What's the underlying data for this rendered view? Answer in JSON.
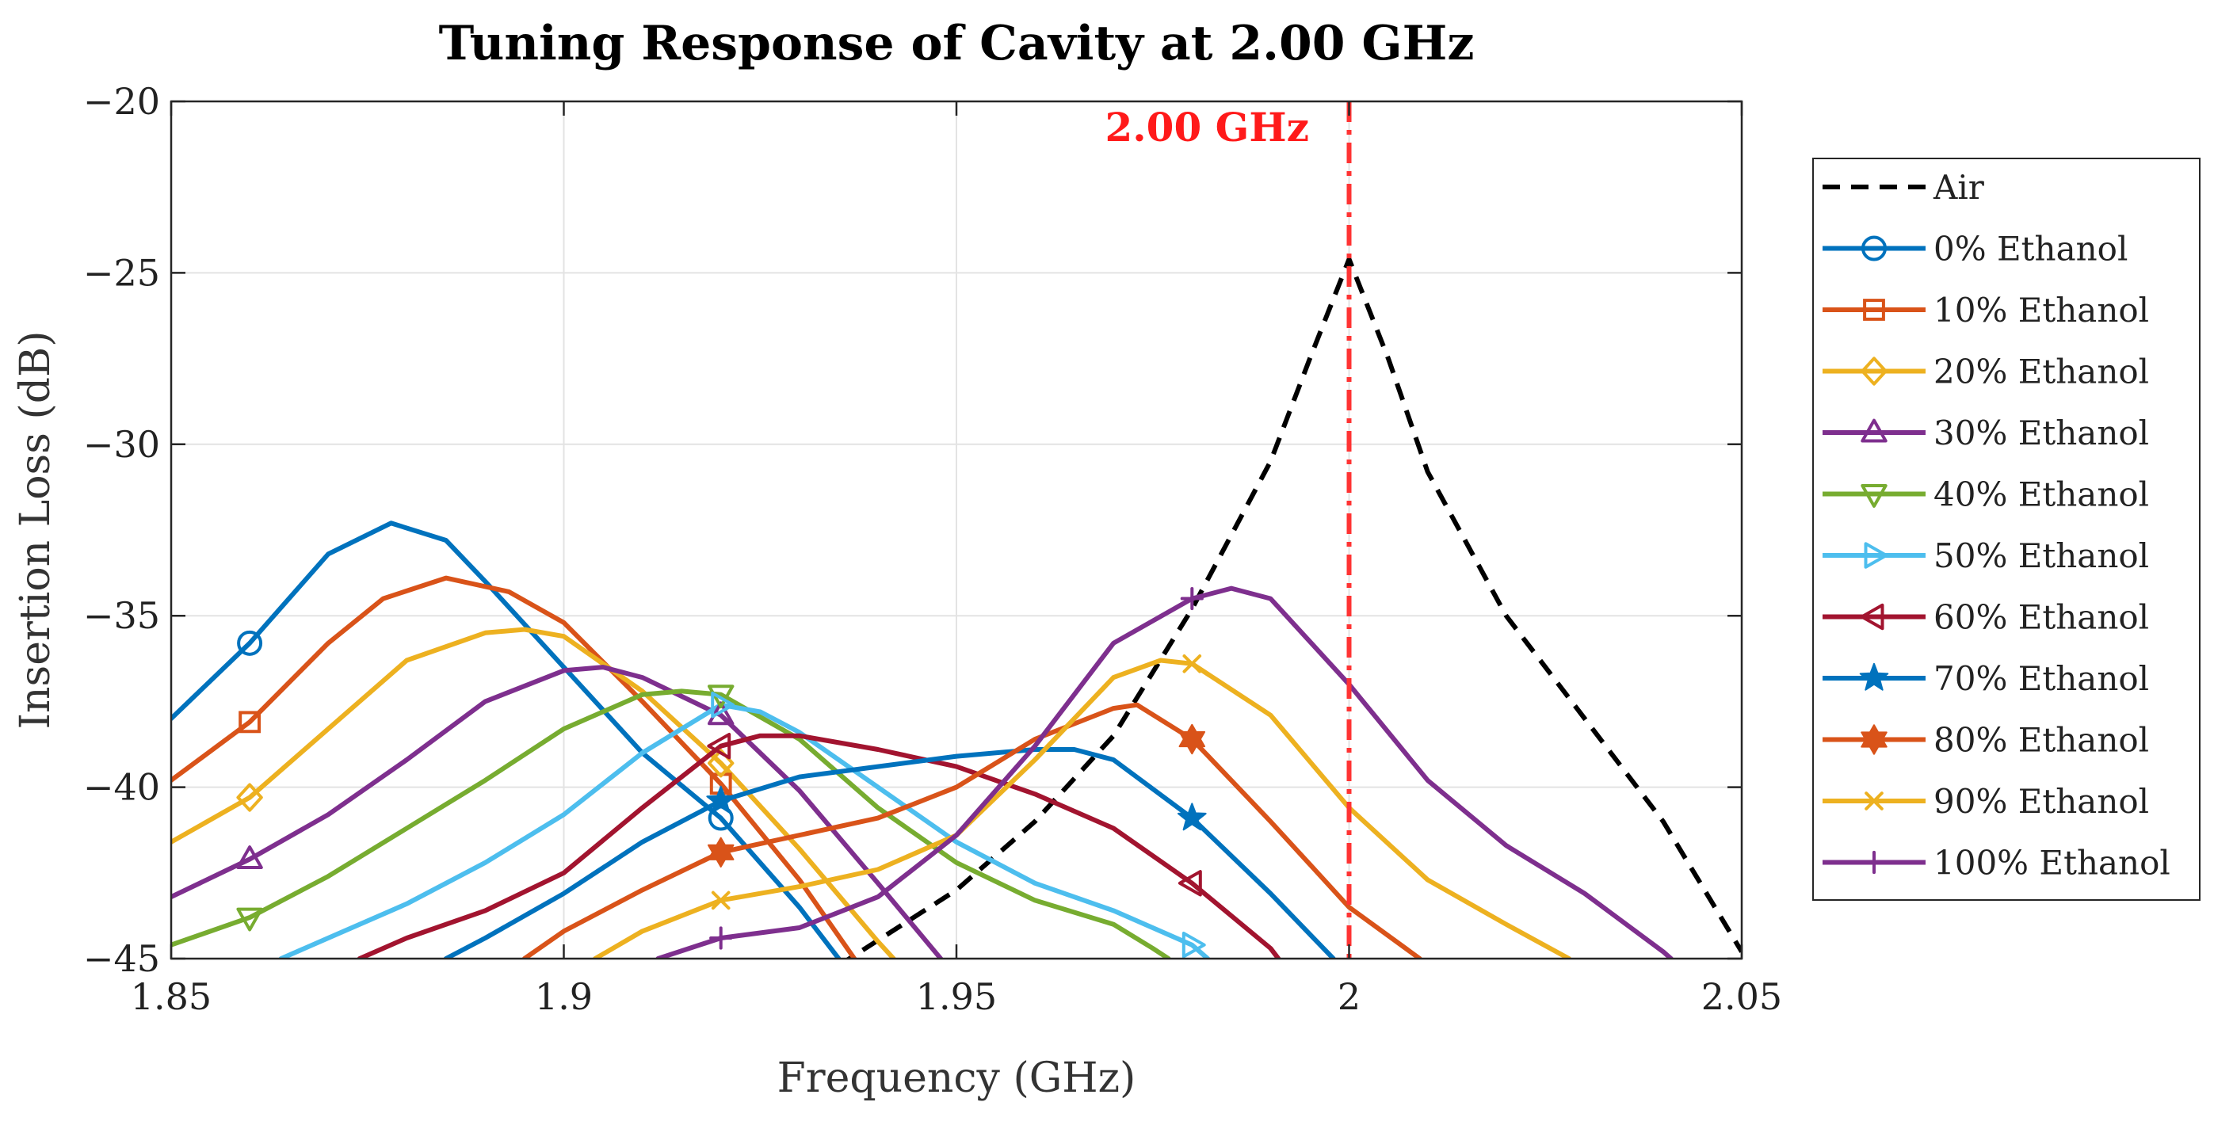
{
  "chart_data": {
    "type": "line",
    "title": "Tuning Response of Cavity at 2.00 GHz",
    "xlabel": "Frequency (GHz)",
    "ylabel": "Insertion Loss (dB)",
    "xlim": [
      1.85,
      2.05
    ],
    "ylim": [
      -45,
      -20
    ],
    "xticks": [
      1.85,
      1.9,
      1.95,
      2,
      2.05
    ],
    "xtick_labels": [
      "1.85",
      "1.9",
      "1.95",
      "2",
      "2.05"
    ],
    "yticks": [
      -45,
      -40,
      -35,
      -30,
      -25,
      -20
    ],
    "ytick_labels": [
      "−45",
      "−40",
      "−35",
      "−30",
      "−25",
      "−20"
    ],
    "grid": true,
    "legend_position": "right",
    "annotation": {
      "text": "2.00 GHz",
      "x": 2.0,
      "color": "#ff3333"
    },
    "series": [
      {
        "name": "Air",
        "color": "#000000",
        "dash": "dashed",
        "marker": "none",
        "marker_x": [],
        "points": [
          [
            1.935,
            -45.2
          ],
          [
            1.95,
            -43.0
          ],
          [
            1.96,
            -41.0
          ],
          [
            1.97,
            -38.5
          ],
          [
            1.98,
            -34.8
          ],
          [
            1.99,
            -30.5
          ],
          [
            1.995,
            -27.5
          ],
          [
            2.0,
            -24.6
          ],
          [
            2.005,
            -27.5
          ],
          [
            2.01,
            -30.8
          ],
          [
            2.02,
            -35.0
          ],
          [
            2.03,
            -38.0
          ],
          [
            2.04,
            -41.0
          ],
          [
            2.05,
            -44.8
          ]
        ]
      },
      {
        "name": "0% Ethanol",
        "color": "#0072BD",
        "dash": "solid",
        "marker": "circle",
        "marker_x": [
          1.86,
          1.92
        ],
        "points": [
          [
            1.85,
            -38.0
          ],
          [
            1.86,
            -35.8
          ],
          [
            1.87,
            -33.2
          ],
          [
            1.878,
            -32.3
          ],
          [
            1.885,
            -32.8
          ],
          [
            1.89,
            -34.0
          ],
          [
            1.9,
            -36.5
          ],
          [
            1.91,
            -39.0
          ],
          [
            1.92,
            -40.9
          ],
          [
            1.93,
            -43.5
          ],
          [
            1.935,
            -45.0
          ]
        ]
      },
      {
        "name": "10% Ethanol",
        "color": "#D95319",
        "dash": "solid",
        "marker": "square",
        "marker_x": [
          1.86,
          1.92
        ],
        "points": [
          [
            1.85,
            -39.8
          ],
          [
            1.86,
            -38.1
          ],
          [
            1.87,
            -35.8
          ],
          [
            1.877,
            -34.5
          ],
          [
            1.885,
            -33.9
          ],
          [
            1.893,
            -34.3
          ],
          [
            1.9,
            -35.2
          ],
          [
            1.91,
            -37.5
          ],
          [
            1.92,
            -39.9
          ],
          [
            1.93,
            -42.7
          ],
          [
            1.937,
            -45.0
          ]
        ]
      },
      {
        "name": "20% Ethanol",
        "color": "#EDB120",
        "dash": "solid",
        "marker": "diamond",
        "marker_x": [
          1.86,
          1.92
        ],
        "points": [
          [
            1.85,
            -41.6
          ],
          [
            1.86,
            -40.3
          ],
          [
            1.87,
            -38.3
          ],
          [
            1.88,
            -36.3
          ],
          [
            1.89,
            -35.5
          ],
          [
            1.895,
            -35.4
          ],
          [
            1.9,
            -35.6
          ],
          [
            1.91,
            -37.2
          ],
          [
            1.92,
            -39.3
          ],
          [
            1.93,
            -41.8
          ],
          [
            1.94,
            -44.5
          ],
          [
            1.942,
            -45.0
          ]
        ]
      },
      {
        "name": "30% Ethanol",
        "color": "#7E2F8E",
        "dash": "solid",
        "marker": "triangle-up",
        "marker_x": [
          1.86,
          1.92
        ],
        "points": [
          [
            1.85,
            -43.2
          ],
          [
            1.86,
            -42.1
          ],
          [
            1.87,
            -40.8
          ],
          [
            1.88,
            -39.2
          ],
          [
            1.89,
            -37.5
          ],
          [
            1.9,
            -36.6
          ],
          [
            1.905,
            -36.5
          ],
          [
            1.91,
            -36.8
          ],
          [
            1.92,
            -37.9
          ],
          [
            1.93,
            -40.1
          ],
          [
            1.94,
            -42.8
          ],
          [
            1.948,
            -45.0
          ]
        ]
      },
      {
        "name": "40% Ethanol",
        "color": "#77AC30",
        "dash": "solid",
        "marker": "triangle-down",
        "marker_x": [
          1.86,
          1.92
        ],
        "points": [
          [
            1.85,
            -44.6
          ],
          [
            1.86,
            -43.8
          ],
          [
            1.87,
            -42.6
          ],
          [
            1.88,
            -41.2
          ],
          [
            1.89,
            -39.8
          ],
          [
            1.9,
            -38.3
          ],
          [
            1.91,
            -37.3
          ],
          [
            1.915,
            -37.2
          ],
          [
            1.92,
            -37.3
          ],
          [
            1.93,
            -38.6
          ],
          [
            1.94,
            -40.6
          ],
          [
            1.95,
            -42.2
          ],
          [
            1.96,
            -43.3
          ],
          [
            1.97,
            -44.0
          ],
          [
            1.975,
            -44.7
          ],
          [
            1.977,
            -45.0
          ]
        ]
      },
      {
        "name": "50% Ethanol",
        "color": "#4DBEEE",
        "dash": "solid",
        "marker": "triangle-right",
        "marker_x": [
          1.92,
          1.98
        ],
        "points": [
          [
            1.864,
            -45.0
          ],
          [
            1.87,
            -44.4
          ],
          [
            1.88,
            -43.4
          ],
          [
            1.89,
            -42.2
          ],
          [
            1.9,
            -40.8
          ],
          [
            1.91,
            -39.0
          ],
          [
            1.92,
            -37.6
          ],
          [
            1.925,
            -37.8
          ],
          [
            1.93,
            -38.4
          ],
          [
            1.94,
            -40.0
          ],
          [
            1.95,
            -41.6
          ],
          [
            1.96,
            -42.8
          ],
          [
            1.97,
            -43.6
          ],
          [
            1.98,
            -44.6
          ],
          [
            1.982,
            -45.0
          ]
        ]
      },
      {
        "name": "60% Ethanol",
        "color": "#A2142F",
        "dash": "solid",
        "marker": "triangle-left",
        "marker_x": [
          1.92,
          1.98
        ],
        "points": [
          [
            1.874,
            -45.0
          ],
          [
            1.88,
            -44.4
          ],
          [
            1.89,
            -43.6
          ],
          [
            1.9,
            -42.5
          ],
          [
            1.91,
            -40.6
          ],
          [
            1.92,
            -38.8
          ],
          [
            1.925,
            -38.5
          ],
          [
            1.93,
            -38.5
          ],
          [
            1.94,
            -38.9
          ],
          [
            1.95,
            -39.4
          ],
          [
            1.96,
            -40.2
          ],
          [
            1.97,
            -41.2
          ],
          [
            1.98,
            -42.8
          ],
          [
            1.99,
            -44.7
          ],
          [
            1.991,
            -45.0
          ]
        ]
      },
      {
        "name": "70% Ethanol",
        "color": "#0072BD",
        "dash": "solid",
        "marker": "star",
        "marker_x": [
          1.92,
          1.98
        ],
        "points": [
          [
            1.885,
            -45.0
          ],
          [
            1.89,
            -44.4
          ],
          [
            1.9,
            -43.1
          ],
          [
            1.91,
            -41.6
          ],
          [
            1.92,
            -40.4
          ],
          [
            1.93,
            -39.7
          ],
          [
            1.94,
            -39.4
          ],
          [
            1.95,
            -39.1
          ],
          [
            1.96,
            -38.9
          ],
          [
            1.965,
            -38.9
          ],
          [
            1.97,
            -39.2
          ],
          [
            1.98,
            -40.9
          ],
          [
            1.99,
            -43.1
          ],
          [
            1.998,
            -45.0
          ]
        ]
      },
      {
        "name": "80% Ethanol",
        "color": "#D95319",
        "dash": "solid",
        "marker": "hexagram",
        "marker_x": [
          1.92,
          1.98
        ],
        "points": [
          [
            1.895,
            -45.0
          ],
          [
            1.9,
            -44.2
          ],
          [
            1.91,
            -43.0
          ],
          [
            1.92,
            -41.9
          ],
          [
            1.93,
            -41.4
          ],
          [
            1.94,
            -40.9
          ],
          [
            1.95,
            -40.0
          ],
          [
            1.96,
            -38.6
          ],
          [
            1.97,
            -37.7
          ],
          [
            1.973,
            -37.6
          ],
          [
            1.98,
            -38.6
          ],
          [
            1.99,
            -41.0
          ],
          [
            2.0,
            -43.5
          ],
          [
            2.009,
            -45.0
          ]
        ]
      },
      {
        "name": "90% Ethanol",
        "color": "#EDB120",
        "dash": "solid",
        "marker": "x",
        "marker_x": [
          1.92,
          1.98
        ],
        "points": [
          [
            1.904,
            -45.0
          ],
          [
            1.91,
            -44.2
          ],
          [
            1.92,
            -43.3
          ],
          [
            1.93,
            -42.9
          ],
          [
            1.94,
            -42.4
          ],
          [
            1.95,
            -41.4
          ],
          [
            1.96,
            -39.2
          ],
          [
            1.97,
            -36.8
          ],
          [
            1.976,
            -36.3
          ],
          [
            1.98,
            -36.4
          ],
          [
            1.99,
            -37.9
          ],
          [
            2.0,
            -40.6
          ],
          [
            2.01,
            -42.7
          ],
          [
            2.02,
            -44.0
          ],
          [
            2.028,
            -45.0
          ]
        ]
      },
      {
        "name": "100% Ethanol",
        "color": "#7E2F8E",
        "dash": "solid",
        "marker": "plus",
        "marker_x": [
          1.92,
          1.98
        ],
        "points": [
          [
            1.912,
            -45.0
          ],
          [
            1.92,
            -44.4
          ],
          [
            1.93,
            -44.1
          ],
          [
            1.94,
            -43.2
          ],
          [
            1.95,
            -41.4
          ],
          [
            1.96,
            -38.8
          ],
          [
            1.97,
            -35.8
          ],
          [
            1.98,
            -34.5
          ],
          [
            1.985,
            -34.2
          ],
          [
            1.99,
            -34.5
          ],
          [
            2.0,
            -37.0
          ],
          [
            2.01,
            -39.8
          ],
          [
            2.02,
            -41.7
          ],
          [
            2.03,
            -43.1
          ],
          [
            2.04,
            -44.8
          ],
          [
            2.041,
            -45.0
          ]
        ]
      }
    ]
  }
}
